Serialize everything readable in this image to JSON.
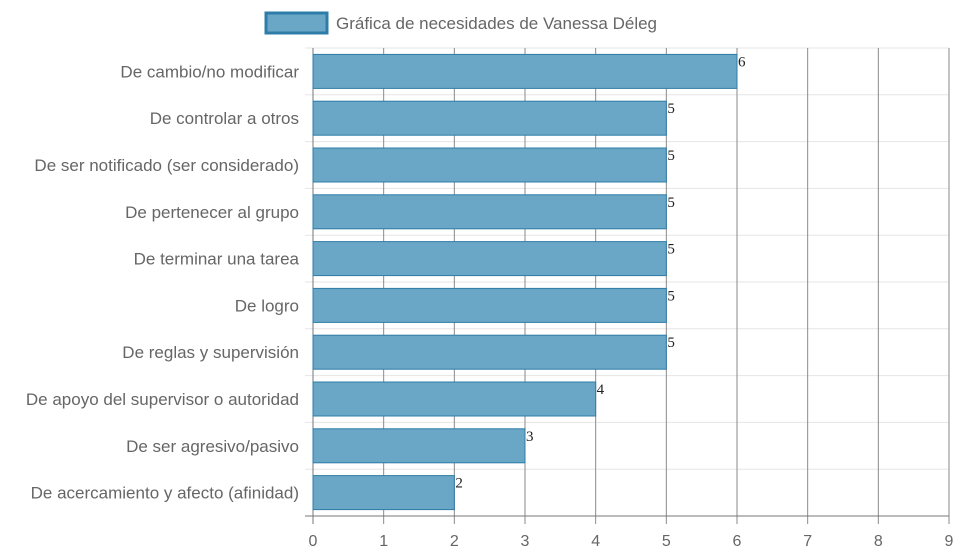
{
  "chart_data": {
    "type": "bar",
    "orientation": "horizontal",
    "title": "",
    "legend": {
      "position": "top"
    },
    "categories": [
      "De cambio/no modificar",
      "De controlar a otros",
      "De ser notificado (ser considerado)",
      "De pertenecer al grupo",
      "De terminar una tarea",
      "De logro",
      "De reglas y supervisión",
      "De apoyo del supervisor o autoridad",
      "De ser agresivo/pasivo",
      "De acercamiento y afecto (afinidad)"
    ],
    "series": [
      {
        "name": "Gráfica de necesidades de Vanessa Déleg",
        "values": [
          6,
          5,
          5,
          5,
          5,
          5,
          5,
          4,
          3,
          2
        ],
        "color": "#6aa6c5",
        "border_color": "#2e7ca8"
      }
    ],
    "data_labels": [
      "6",
      "5",
      "5",
      "5",
      "5",
      "5",
      "5",
      "4",
      "3",
      "2"
    ],
    "xlim": [
      0,
      9
    ],
    "x_ticks": [
      "0",
      "1",
      "2",
      "3",
      "4",
      "5",
      "6",
      "7",
      "8",
      "9"
    ],
    "grid": true,
    "colors": {
      "grid": "#e5e5e5",
      "vertical_grid": "#8a8a8a",
      "axis": "#777777"
    }
  }
}
